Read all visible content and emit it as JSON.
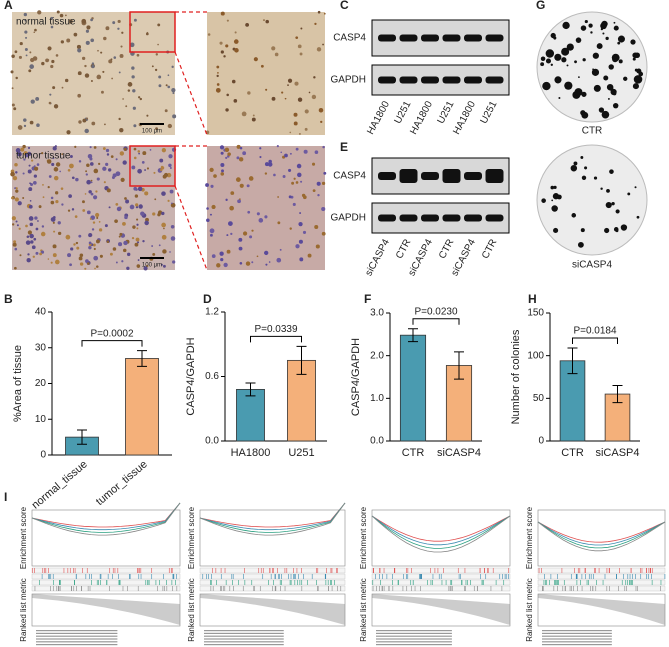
{
  "panels": {
    "labels": [
      "A",
      "B",
      "C",
      "D",
      "E",
      "F",
      "G",
      "H",
      "I"
    ]
  },
  "histology": {
    "normal": "normal tissue",
    "tumor": "tumor tissue",
    "scale": "100 μm"
  },
  "blot_c": {
    "bands": [
      "CASP4",
      "GAPDH"
    ],
    "lanes": [
      "HA1800",
      "U251",
      "HA1800",
      "U251",
      "HA1800",
      "U251"
    ]
  },
  "blot_e": {
    "bands": [
      "CASP4",
      "GAPDH"
    ],
    "lanes": [
      "siCASP4",
      "CTR",
      "siCASP4",
      "CTR",
      "siCASP4",
      "CTR"
    ]
  },
  "colony": {
    "labels": [
      "CTR",
      "siCASP4"
    ]
  },
  "gsea": {
    "y_labels": [
      "Enrichment score",
      "Ranked list metric"
    ]
  },
  "chart_data": [
    {
      "type": "bar",
      "ylabel": "%Area of tissue",
      "categories": [
        "normal_tissue",
        "tumor_tissue"
      ],
      "values": [
        5,
        27
      ],
      "errors": [
        2,
        2.2
      ],
      "colors": [
        "#4a9bb0",
        "#f4b07a"
      ],
      "ylim": [
        0,
        40
      ],
      "yticks": [
        0,
        10,
        20,
        30,
        40
      ],
      "pvalue": "P=0.0002",
      "rotate_labels": true
    },
    {
      "type": "bar",
      "ylabel": "CASP4/GAPDH",
      "categories": [
        "HA1800",
        "U251"
      ],
      "values": [
        0.48,
        0.75
      ],
      "errors": [
        0.06,
        0.13
      ],
      "colors": [
        "#4a9bb0",
        "#f4b07a"
      ],
      "ylim": [
        0,
        1.2
      ],
      "yticks": [
        {
          "value": 0,
          "label": "0.0"
        },
        {
          "value": 0.6,
          "label": "0.6"
        },
        {
          "value": 1.2,
          "label": "1.2"
        }
      ],
      "pvalue": "P=0.0339",
      "rotate_labels": false
    },
    {
      "type": "bar",
      "ylabel": "CASP4/GAPDH",
      "categories": [
        "CTR",
        "siCASP4"
      ],
      "values": [
        2.48,
        1.77
      ],
      "errors": [
        0.15,
        0.32
      ],
      "colors": [
        "#4a9bb0",
        "#f4b07a"
      ],
      "ylim": [
        0,
        3
      ],
      "yticks": [
        {
          "value": 0,
          "label": "0.0"
        },
        {
          "value": 1,
          "label": "1.0"
        },
        {
          "value": 2,
          "label": "2.0"
        },
        {
          "value": 3,
          "label": "3.0"
        }
      ],
      "pvalue": "P=0.0230",
      "rotate_labels": false
    },
    {
      "type": "bar",
      "ylabel": "Number of colonies",
      "categories": [
        "CTR",
        "siCASP4"
      ],
      "values": [
        94,
        55
      ],
      "errors": [
        15,
        10
      ],
      "colors": [
        "#4a9bb0",
        "#f4b07a"
      ],
      "ylim": [
        0,
        150
      ],
      "yticks": [
        0,
        50,
        100,
        150
      ],
      "pvalue": "P=0.0184",
      "rotate_labels": false
    }
  ]
}
